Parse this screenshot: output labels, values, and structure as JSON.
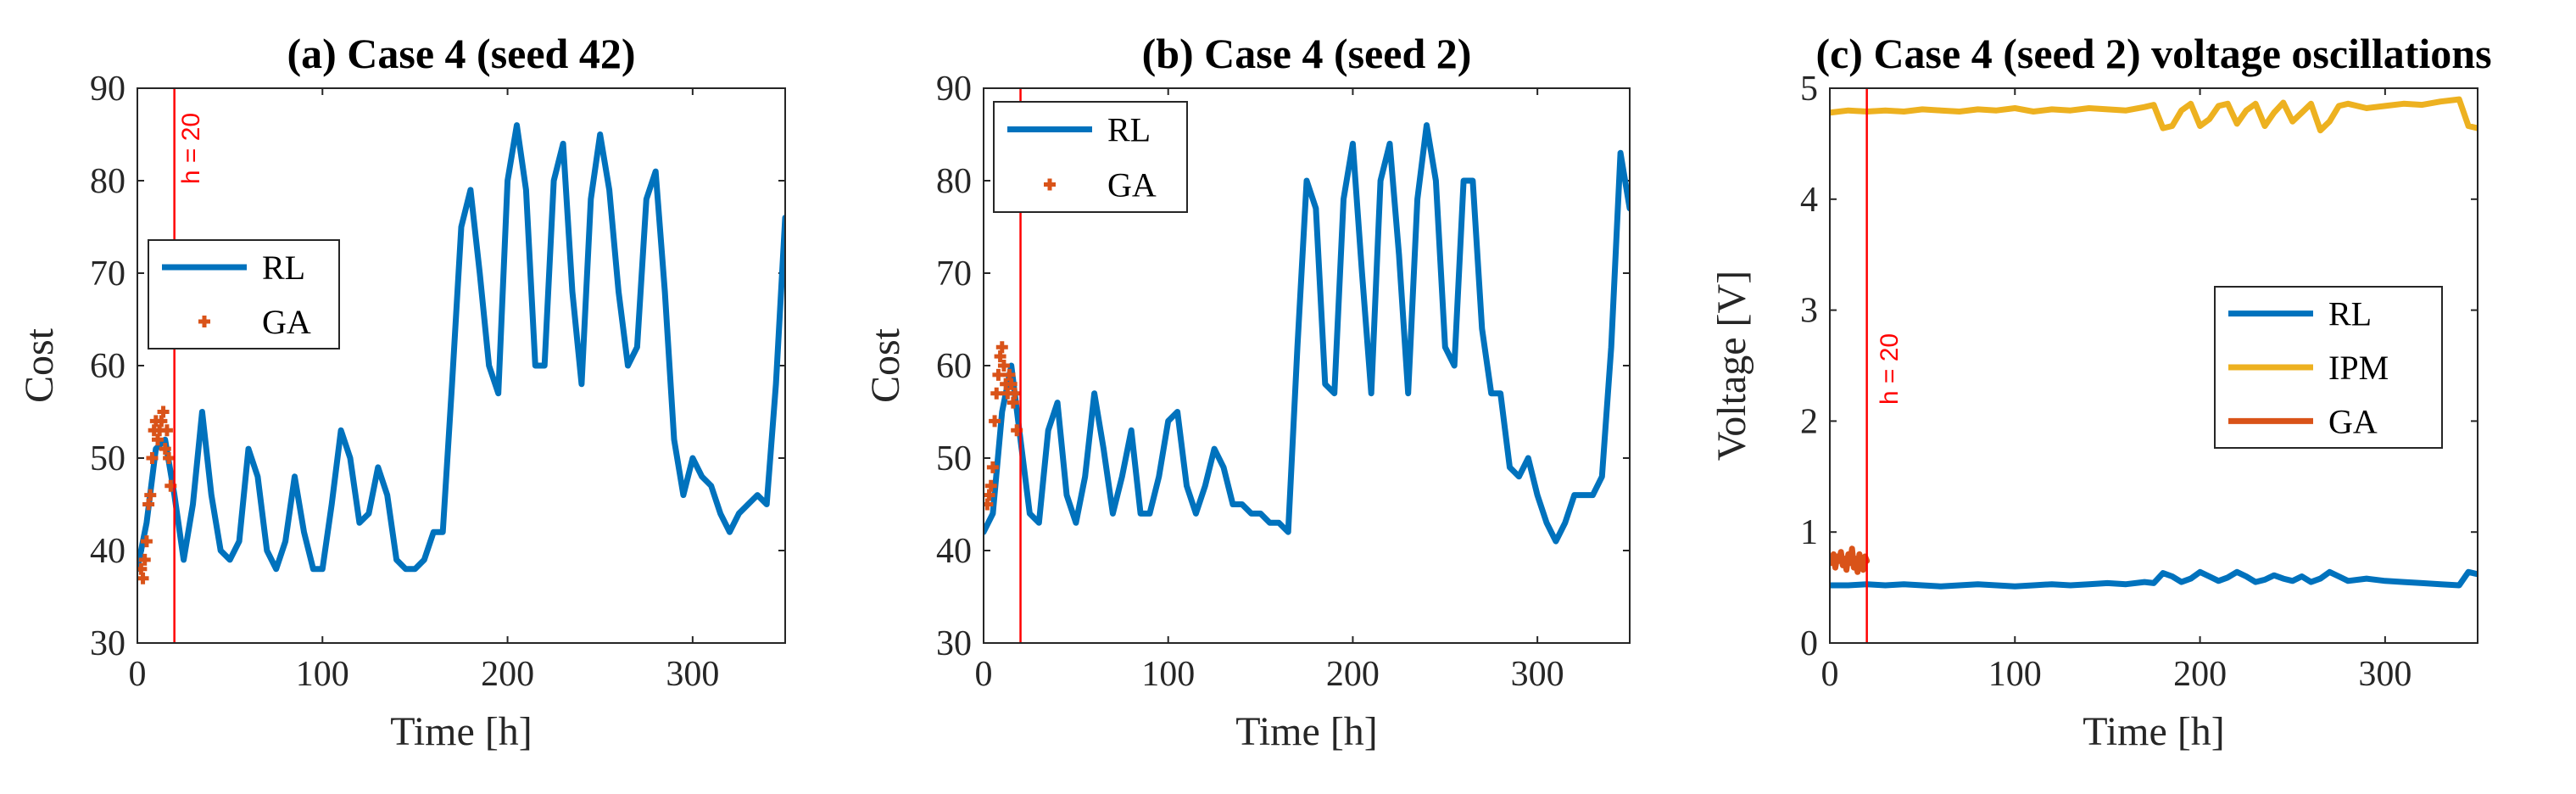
{
  "chart_data": [
    {
      "id": "a",
      "type": "line",
      "title": "(a) Case 4 (seed 42)",
      "xlabel": "Time [h]",
      "ylabel": "Cost",
      "xlim": [
        0,
        350
      ],
      "ylim": [
        30,
        90
      ],
      "xticks": [
        0,
        100,
        200,
        300
      ],
      "yticks": [
        30,
        40,
        50,
        60,
        70,
        80,
        90
      ],
      "legend_position": "middle-left",
      "vline": {
        "x": 20,
        "label": "h = 20",
        "color": "#ff0000"
      },
      "series": [
        {
          "name": "RL",
          "style": "line",
          "color": "#0072bd",
          "x": [
            0,
            5,
            10,
            15,
            20,
            25,
            30,
            35,
            40,
            45,
            50,
            55,
            60,
            65,
            70,
            75,
            80,
            85,
            90,
            95,
            100,
            105,
            110,
            115,
            120,
            125,
            130,
            135,
            140,
            145,
            150,
            155,
            160,
            165,
            170,
            175,
            180,
            185,
            190,
            195,
            200,
            205,
            210,
            215,
            220,
            225,
            230,
            235,
            240,
            245,
            250,
            255,
            260,
            265,
            270,
            275,
            280,
            285,
            290,
            295,
            300,
            305,
            310,
            315,
            320,
            325,
            330,
            335,
            340,
            345,
            350
          ],
          "values": [
            38,
            43,
            51,
            52,
            46,
            39,
            45,
            55,
            46,
            40,
            39,
            41,
            51,
            48,
            40,
            38,
            41,
            48,
            42,
            38,
            38,
            45,
            53,
            50,
            43,
            44,
            49,
            46,
            39,
            38,
            38,
            39,
            42,
            42,
            58,
            75,
            79,
            70,
            60,
            57,
            80,
            86,
            79,
            60,
            60,
            80,
            84,
            68,
            58,
            78,
            85,
            79,
            68,
            60,
            62,
            78,
            81,
            68,
            52,
            46,
            50,
            48,
            47,
            44,
            42,
            44,
            45,
            46,
            45,
            58,
            76
          ]
        },
        {
          "name": "GA",
          "style": "markers",
          "color": "#d95319",
          "x": [
            2,
            3,
            4,
            5,
            6,
            7,
            8,
            9,
            10,
            11,
            12,
            13,
            14,
            15,
            16,
            17,
            18
          ],
          "values": [
            38,
            37,
            39,
            41,
            45,
            46,
            50,
            53,
            54,
            52,
            53,
            54,
            55,
            51,
            53,
            50,
            47
          ]
        }
      ]
    },
    {
      "id": "b",
      "type": "line",
      "title": "(b) Case 4 (seed 2)",
      "xlabel": "Time [h]",
      "ylabel": "Cost",
      "xlim": [
        0,
        350
      ],
      "ylim": [
        30,
        90
      ],
      "xticks": [
        0,
        100,
        200,
        300
      ],
      "yticks": [
        30,
        40,
        50,
        60,
        70,
        80,
        90
      ],
      "legend_position": "top-left",
      "vline": {
        "x": 20,
        "label": "",
        "color": "#ff0000"
      },
      "series": [
        {
          "name": "RL",
          "style": "line",
          "color": "#0072bd",
          "x": [
            0,
            5,
            10,
            15,
            20,
            25,
            30,
            35,
            40,
            45,
            50,
            55,
            60,
            65,
            70,
            75,
            80,
            85,
            90,
            95,
            100,
            105,
            110,
            115,
            120,
            125,
            130,
            135,
            140,
            145,
            150,
            155,
            160,
            165,
            170,
            175,
            180,
            185,
            190,
            195,
            200,
            205,
            210,
            215,
            220,
            225,
            230,
            235,
            240,
            245,
            250,
            255,
            260,
            265,
            270,
            275,
            280,
            285,
            290,
            295,
            300,
            305,
            310,
            315,
            320,
            325,
            330,
            335,
            340,
            345,
            350
          ],
          "values": [
            42,
            44,
            55,
            60,
            52,
            44,
            43,
            53,
            56,
            46,
            43,
            48,
            57,
            51,
            44,
            48,
            53,
            44,
            44,
            48,
            54,
            55,
            47,
            44,
            47,
            51,
            49,
            45,
            45,
            44,
            44,
            43,
            43,
            42,
            62,
            80,
            77,
            58,
            57,
            78,
            84,
            70,
            57,
            80,
            84,
            72,
            57,
            78,
            86,
            80,
            62,
            60,
            80,
            80,
            64,
            57,
            57,
            49,
            48,
            50,
            46,
            43,
            41,
            43,
            46,
            46,
            46,
            48,
            62,
            83,
            77
          ]
        },
        {
          "name": "GA",
          "style": "markers",
          "color": "#d95319",
          "x": [
            2,
            3,
            4,
            5,
            6,
            7,
            8,
            9,
            10,
            11,
            12,
            13,
            14,
            15,
            16,
            17,
            18
          ],
          "values": [
            45,
            46,
            47,
            49,
            54,
            57,
            59,
            61,
            62,
            60,
            58,
            57,
            59,
            58,
            56,
            57,
            53
          ]
        }
      ]
    },
    {
      "id": "c",
      "type": "line",
      "title": "(c) Case 4 (seed 2) voltage oscillations",
      "xlabel": "Time [h]",
      "ylabel": "Voltage [V]",
      "xlim": [
        0,
        350
      ],
      "ylim": [
        0,
        5
      ],
      "xticks": [
        0,
        100,
        200,
        300
      ],
      "yticks": [
        0,
        1,
        2,
        3,
        4,
        5
      ],
      "legend_position": "right",
      "vline": {
        "x": 20,
        "label": "h = 20",
        "color": "#ff0000"
      },
      "series": [
        {
          "name": "RL",
          "style": "line",
          "color": "#0072bd",
          "x": [
            0,
            10,
            20,
            30,
            40,
            50,
            60,
            70,
            80,
            90,
            100,
            110,
            120,
            130,
            140,
            150,
            160,
            170,
            175,
            180,
            185,
            190,
            195,
            200,
            205,
            210,
            215,
            220,
            225,
            230,
            235,
            240,
            245,
            250,
            255,
            260,
            265,
            270,
            275,
            280,
            290,
            300,
            310,
            320,
            330,
            340,
            345,
            350
          ],
          "values": [
            0.52,
            0.52,
            0.53,
            0.52,
            0.53,
            0.52,
            0.51,
            0.52,
            0.53,
            0.52,
            0.51,
            0.52,
            0.53,
            0.52,
            0.53,
            0.54,
            0.53,
            0.55,
            0.54,
            0.63,
            0.6,
            0.55,
            0.58,
            0.64,
            0.6,
            0.56,
            0.59,
            0.64,
            0.6,
            0.55,
            0.57,
            0.61,
            0.58,
            0.56,
            0.6,
            0.55,
            0.58,
            0.64,
            0.6,
            0.56,
            0.58,
            0.56,
            0.55,
            0.54,
            0.53,
            0.52,
            0.64,
            0.62
          ]
        },
        {
          "name": "IPM",
          "style": "line",
          "color": "#edb120",
          "x": [
            0,
            10,
            20,
            30,
            40,
            50,
            60,
            70,
            80,
            90,
            100,
            110,
            120,
            130,
            140,
            150,
            160,
            170,
            175,
            180,
            185,
            190,
            195,
            200,
            205,
            210,
            215,
            220,
            225,
            230,
            235,
            240,
            245,
            250,
            255,
            260,
            265,
            270,
            275,
            280,
            290,
            300,
            310,
            320,
            330,
            340,
            345,
            350
          ],
          "values": [
            4.78,
            4.8,
            4.79,
            4.8,
            4.79,
            4.81,
            4.8,
            4.79,
            4.81,
            4.8,
            4.82,
            4.79,
            4.81,
            4.8,
            4.82,
            4.81,
            4.8,
            4.83,
            4.85,
            4.64,
            4.66,
            4.8,
            4.86,
            4.66,
            4.72,
            4.84,
            4.86,
            4.68,
            4.8,
            4.86,
            4.66,
            4.78,
            4.87,
            4.7,
            4.78,
            4.86,
            4.62,
            4.7,
            4.84,
            4.86,
            4.82,
            4.84,
            4.86,
            4.85,
            4.88,
            4.9,
            4.66,
            4.64
          ]
        },
        {
          "name": "GA",
          "style": "line",
          "color": "#d95319",
          "x": [
            1,
            2,
            3,
            4,
            5,
            6,
            7,
            8,
            9,
            10,
            11,
            12,
            13,
            14,
            15,
            16,
            17,
            18,
            19,
            20
          ],
          "values": [
            0.72,
            0.8,
            0.68,
            0.78,
            0.74,
            0.82,
            0.7,
            0.76,
            0.66,
            0.8,
            0.72,
            0.85,
            0.68,
            0.76,
            0.64,
            0.8,
            0.72,
            0.66,
            0.78,
            0.74
          ]
        }
      ]
    }
  ]
}
